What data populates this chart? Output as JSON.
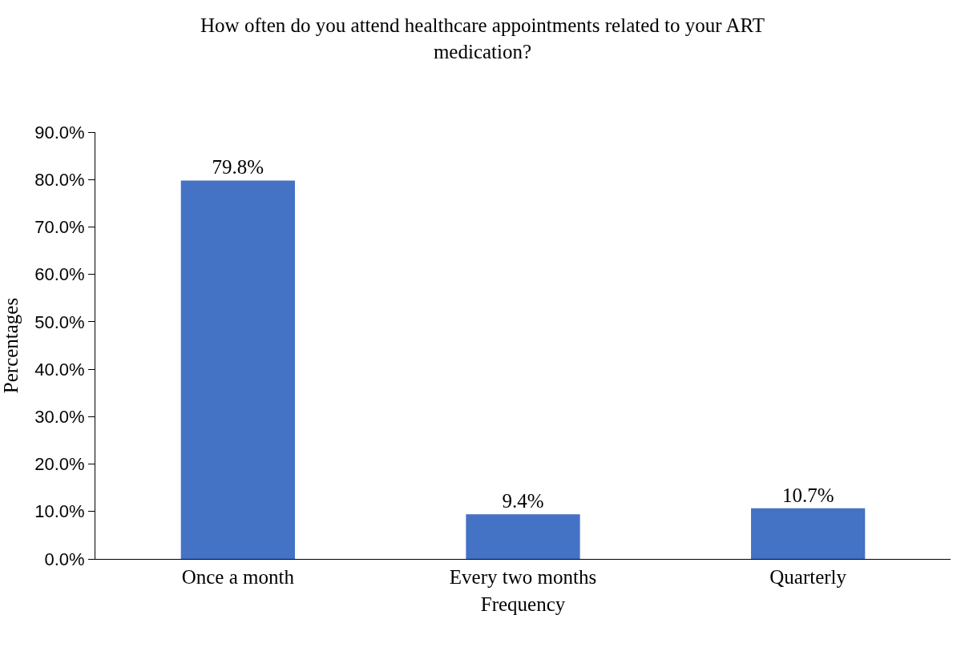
{
  "chart_data": {
    "type": "bar",
    "title": "How often do you attend healthcare appointments related to your ART medication?",
    "xlabel": "Frequency",
    "ylabel": "Percentages",
    "categories": [
      "Once a month",
      "Every two months",
      "Quarterly"
    ],
    "values": [
      79.8,
      9.4,
      10.7
    ],
    "value_labels": [
      "79.8%",
      "9.4%",
      "10.7%"
    ],
    "color": "#4472c4",
    "ylim": [
      0,
      90
    ],
    "yticks": [
      {
        "value": 0,
        "label": "0.0%"
      },
      {
        "value": 10,
        "label": "10.0%"
      },
      {
        "value": 20,
        "label": "20.0%"
      },
      {
        "value": 30,
        "label": "30.0%"
      },
      {
        "value": 40,
        "label": "40.0%"
      },
      {
        "value": 50,
        "label": "50.0%"
      },
      {
        "value": 60,
        "label": "60.0%"
      },
      {
        "value": 70,
        "label": "70.0%"
      },
      {
        "value": 80,
        "label": "80.0%"
      },
      {
        "value": 90,
        "label": "90.0%"
      }
    ],
    "legend": false
  }
}
